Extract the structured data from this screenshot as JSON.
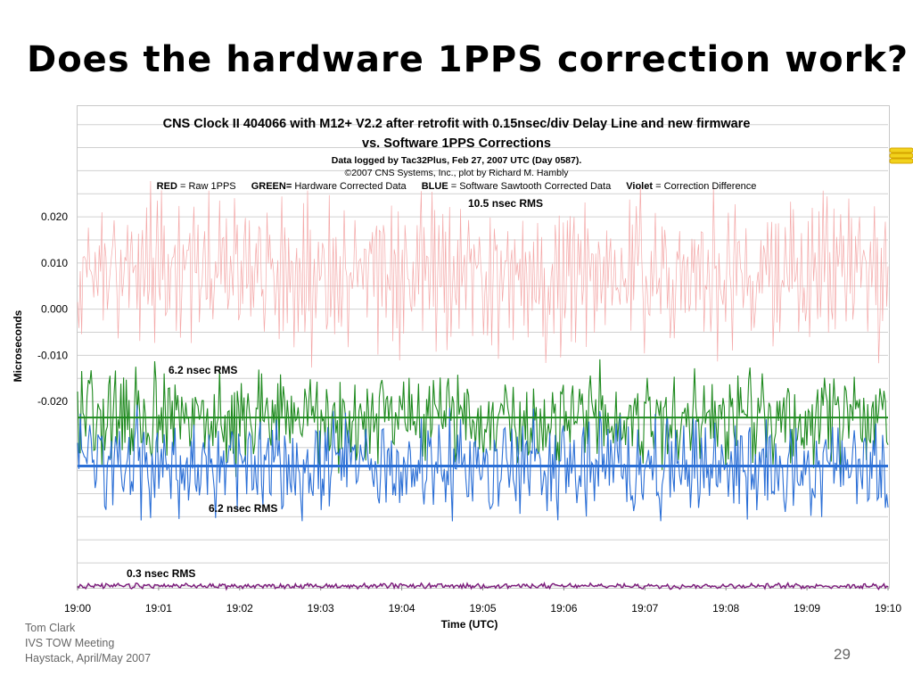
{
  "slide": {
    "title": "Does the hardware 1PPS correction work?",
    "footer_lines": [
      "Tom Clark",
      "IVS TOW Meeting",
      "Haystack, April/May 2007"
    ],
    "page_number": "29"
  },
  "chart_header": {
    "title_line1": "CNS Clock II 404066 with M12+ V2.2 after retrofit with 0.15nsec/div Delay Line and new firmware",
    "title_line2": "vs. Software 1PPS Corrections",
    "subtitle_line1": "Data logged by Tac32Plus, Feb 27, 2007 UTC (Day 0587).",
    "subtitle_line2": "©2007 CNS Systems, Inc., plot by Richard M. Hambly",
    "legend": [
      {
        "key": "RED",
        "text": "= Raw 1PPS"
      },
      {
        "key": "GREEN=",
        "text": "Hardware Corrected Data"
      },
      {
        "key": "BLUE",
        "text": "= Software Sawtooth Corrected Data"
      },
      {
        "key": "Violet",
        "text": "= Correction Difference"
      }
    ]
  },
  "colors": {
    "raw": "#f4a8a8",
    "hardware": "#1f8a1f",
    "software": "#2b6fd6",
    "difference": "#7b1a7b",
    "grid": "#d0d0d0"
  },
  "annotations": {
    "raw_rms": "10.5 nsec RMS",
    "hardware_rms": "6.2 nsec RMS",
    "software_rms": "6.2 nsec RMS",
    "difference_rms": "0.3 nsec RMS"
  },
  "chart_data": {
    "type": "line",
    "xlabel": "Time (UTC)",
    "ylabel": "Microseconds",
    "x_ticks": [
      "19:00",
      "19:01",
      "19:02",
      "19:03",
      "19:04",
      "19:05",
      "19:06",
      "19:07",
      "19:08",
      "19:09",
      "19:10"
    ],
    "y_ticks": [
      "0.020",
      "0.010",
      "0.000",
      "-0.010",
      "-0.020"
    ],
    "xlim": [
      "19:00",
      "19:10"
    ],
    "ylim": [
      -0.06,
      0.044
    ],
    "grid": "horizontal",
    "series": [
      {
        "name": "Raw 1PPS",
        "key": "raw",
        "mean": 0.008,
        "rms_ns": 10.5
      },
      {
        "name": "Hardware Corrected Data",
        "key": "hardware",
        "mean": -0.0235,
        "rms_ns": 6.2
      },
      {
        "name": "Software Sawtooth Corrected Data",
        "key": "software",
        "mean": -0.034,
        "rms_ns": 6.2
      },
      {
        "name": "Correction Difference",
        "key": "difference",
        "mean": -0.06,
        "rms_ns": 0.3
      }
    ]
  }
}
